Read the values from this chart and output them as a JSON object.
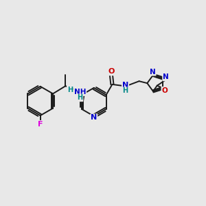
{
  "bg_color": "#e8e8e8",
  "bond_color": "#1a1a1a",
  "bond_width": 1.4,
  "atom_colors": {
    "N": "#0000cc",
    "O": "#cc0000",
    "F": "#dd00dd",
    "C": "#1a1a1a",
    "H": "#008888"
  },
  "figsize": [
    3.0,
    3.0
  ],
  "dpi": 100
}
